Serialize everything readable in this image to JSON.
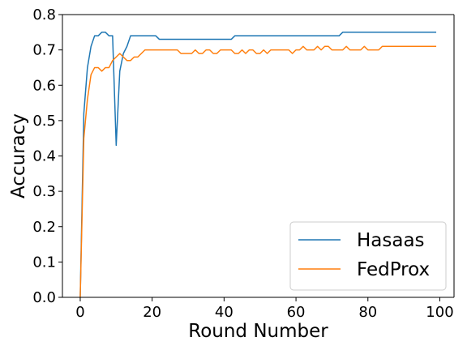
{
  "chart_data": {
    "type": "line",
    "title": "",
    "xlabel": "Round Number",
    "ylabel": "Accuracy",
    "xlim": [
      -4.95,
      103.95
    ],
    "ylim": [
      0.0,
      0.8
    ],
    "xticks": [
      0,
      20,
      40,
      60,
      80,
      100
    ],
    "yticks": [
      0.0,
      0.1,
      0.2,
      0.3,
      0.4,
      0.5,
      0.6,
      0.7,
      0.8
    ],
    "xtick_labels": [
      "0",
      "20",
      "40",
      "60",
      "80",
      "100"
    ],
    "ytick_labels": [
      "0.0",
      "0.1",
      "0.2",
      "0.3",
      "0.4",
      "0.5",
      "0.6",
      "0.7",
      "0.8"
    ],
    "grid": false,
    "legend_position": "lower-right",
    "x": [
      0,
      1,
      2,
      3,
      4,
      5,
      6,
      7,
      8,
      9,
      10,
      11,
      12,
      13,
      14,
      15,
      16,
      17,
      18,
      19,
      20,
      21,
      22,
      23,
      24,
      25,
      26,
      27,
      28,
      29,
      30,
      31,
      32,
      33,
      34,
      35,
      36,
      37,
      38,
      39,
      40,
      41,
      42,
      43,
      44,
      45,
      46,
      47,
      48,
      49,
      50,
      51,
      52,
      53,
      54,
      55,
      56,
      57,
      58,
      59,
      60,
      61,
      62,
      63,
      64,
      65,
      66,
      67,
      68,
      69,
      70,
      71,
      72,
      73,
      74,
      75,
      76,
      77,
      78,
      79,
      80,
      81,
      82,
      83,
      84,
      85,
      86,
      87,
      88,
      89,
      90,
      91,
      92,
      93,
      94,
      95,
      96,
      97,
      98,
      99
    ],
    "series": [
      {
        "name": "Hasaas",
        "color": "#1f77b4",
        "values": [
          0.0,
          0.52,
          0.65,
          0.71,
          0.74,
          0.74,
          0.75,
          0.75,
          0.74,
          0.74,
          0.43,
          0.64,
          0.69,
          0.71,
          0.74,
          0.74,
          0.74,
          0.74,
          0.74,
          0.74,
          0.74,
          0.74,
          0.73,
          0.73,
          0.73,
          0.73,
          0.73,
          0.73,
          0.73,
          0.73,
          0.73,
          0.73,
          0.73,
          0.73,
          0.73,
          0.73,
          0.73,
          0.73,
          0.73,
          0.73,
          0.73,
          0.73,
          0.73,
          0.74,
          0.74,
          0.74,
          0.74,
          0.74,
          0.74,
          0.74,
          0.74,
          0.74,
          0.74,
          0.74,
          0.74,
          0.74,
          0.74,
          0.74,
          0.74,
          0.74,
          0.74,
          0.74,
          0.74,
          0.74,
          0.74,
          0.74,
          0.74,
          0.74,
          0.74,
          0.74,
          0.74,
          0.74,
          0.74,
          0.75,
          0.75,
          0.75,
          0.75,
          0.75,
          0.75,
          0.75,
          0.75,
          0.75,
          0.75,
          0.75,
          0.75,
          0.75,
          0.75,
          0.75,
          0.75,
          0.75,
          0.75,
          0.75,
          0.75,
          0.75,
          0.75,
          0.75,
          0.75,
          0.75,
          0.75,
          0.75
        ]
      },
      {
        "name": "FedProx",
        "color": "#ff7f0e",
        "values": [
          0.0,
          0.45,
          0.56,
          0.63,
          0.65,
          0.65,
          0.64,
          0.65,
          0.65,
          0.67,
          0.68,
          0.69,
          0.68,
          0.67,
          0.67,
          0.68,
          0.68,
          0.69,
          0.7,
          0.7,
          0.7,
          0.7,
          0.7,
          0.7,
          0.7,
          0.7,
          0.7,
          0.7,
          0.69,
          0.69,
          0.69,
          0.69,
          0.7,
          0.69,
          0.69,
          0.7,
          0.7,
          0.69,
          0.69,
          0.7,
          0.7,
          0.7,
          0.7,
          0.69,
          0.69,
          0.7,
          0.69,
          0.7,
          0.7,
          0.69,
          0.69,
          0.7,
          0.69,
          0.7,
          0.7,
          0.7,
          0.7,
          0.7,
          0.7,
          0.69,
          0.7,
          0.7,
          0.71,
          0.7,
          0.7,
          0.7,
          0.71,
          0.7,
          0.71,
          0.71,
          0.7,
          0.7,
          0.7,
          0.7,
          0.71,
          0.7,
          0.7,
          0.7,
          0.7,
          0.71,
          0.7,
          0.7,
          0.7,
          0.7,
          0.71,
          0.71,
          0.71,
          0.71,
          0.71,
          0.71,
          0.71,
          0.71,
          0.71,
          0.71,
          0.71,
          0.71,
          0.71,
          0.71,
          0.71,
          0.71
        ]
      }
    ]
  }
}
